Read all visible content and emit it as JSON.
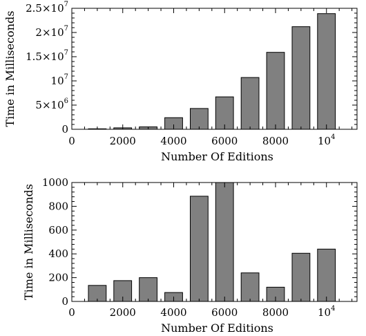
{
  "chart_data": [
    {
      "type": "bar",
      "xlabel": "Number Of Editions",
      "ylabel": "Time in Milliseconds",
      "x": [
        1000,
        2000,
        3000,
        4000,
        5000,
        6000,
        7000,
        8000,
        9000,
        10000
      ],
      "values": [
        100000,
        300000,
        500000,
        2400000,
        4300000,
        6700000,
        10700000,
        15900000,
        21200000,
        23900000
      ],
      "xlim": [
        0,
        11200
      ],
      "ylim": [
        0,
        25000000
      ],
      "xticks": [
        {
          "value": 0,
          "label": "0"
        },
        {
          "value": 2000,
          "label": "2000"
        },
        {
          "value": 4000,
          "label": "4000"
        },
        {
          "value": 6000,
          "label": "6000"
        },
        {
          "value": 8000,
          "label": "8000"
        },
        {
          "value": 10000,
          "label": "10",
          "sup": "4"
        }
      ],
      "yticks": [
        {
          "value": 0,
          "label": "0"
        },
        {
          "value": 5000000,
          "label": "5×10",
          "sup": "6"
        },
        {
          "value": 10000000,
          "label": "10",
          "sup": "7"
        },
        {
          "value": 15000000,
          "label": "1.5×10",
          "sup": "7"
        },
        {
          "value": 20000000,
          "label": "2×10",
          "sup": "7"
        },
        {
          "value": 25000000,
          "label": "2.5×10",
          "sup": "7"
        }
      ],
      "grid": false
    },
    {
      "type": "bar",
      "xlabel": "Number Of Editions",
      "ylabel": "Time in Milliseconds",
      "x": [
        1000,
        2000,
        3000,
        4000,
        5000,
        6000,
        7000,
        8000,
        9000,
        10000
      ],
      "values": [
        135,
        175,
        200,
        75,
        885,
        1050,
        240,
        120,
        405,
        440
      ],
      "xlim": [
        0,
        11200
      ],
      "ylim": [
        0,
        1000
      ],
      "xticks": [
        {
          "value": 0,
          "label": "0"
        },
        {
          "value": 2000,
          "label": "2000"
        },
        {
          "value": 4000,
          "label": "4000"
        },
        {
          "value": 6000,
          "label": "6000"
        },
        {
          "value": 8000,
          "label": "8000"
        },
        {
          "value": 10000,
          "label": "10",
          "sup": "4"
        }
      ],
      "yticks": [
        {
          "value": 0,
          "label": "0"
        },
        {
          "value": 200,
          "label": "200"
        },
        {
          "value": 400,
          "label": "400"
        },
        {
          "value": 600,
          "label": "600"
        },
        {
          "value": 800,
          "label": "800"
        },
        {
          "value": 1000,
          "label": "1000"
        }
      ],
      "grid": false
    }
  ]
}
